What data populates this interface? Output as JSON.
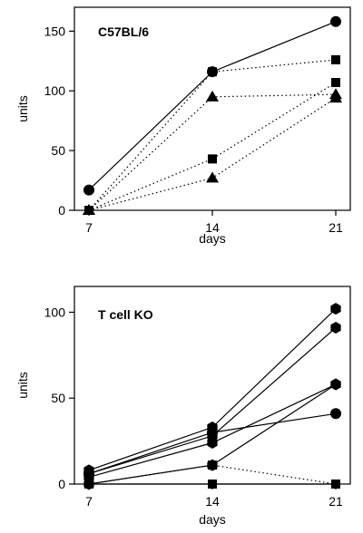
{
  "chart_data": [
    {
      "type": "line",
      "title": "C57BL/6",
      "xlabel": "days",
      "ylabel": "units",
      "x": [
        7,
        14,
        21
      ],
      "xticks": [
        "7",
        "14",
        "21"
      ],
      "yticks": [
        "0",
        "50",
        "100",
        "150"
      ],
      "ylim": [
        0,
        170
      ],
      "grid": false,
      "legend": "none",
      "series": [
        {
          "marker": "circle",
          "dash": "solid",
          "values": [
            17,
            116,
            158
          ]
        },
        {
          "marker": "square",
          "dash": "dotted",
          "values": [
            0,
            116,
            126
          ]
        },
        {
          "marker": "triangle",
          "dash": "dotted",
          "values": [
            0,
            95,
            97
          ]
        },
        {
          "marker": "square",
          "dash": "dotted",
          "values": [
            0,
            43,
            107
          ]
        },
        {
          "marker": "triangle",
          "dash": "dotted",
          "values": [
            0,
            27,
            94
          ]
        }
      ]
    },
    {
      "type": "line",
      "title": "T cell KO",
      "xlabel": "days",
      "ylabel": "units",
      "x": [
        7,
        14,
        21
      ],
      "xticks": [
        "7",
        "14",
        "21"
      ],
      "yticks": [
        "0",
        "50",
        "100"
      ],
      "ylim": [
        0,
        115
      ],
      "grid": false,
      "legend": "none",
      "series": [
        {
          "marker": "hexagon",
          "dash": "solid",
          "values": [
            8,
            33,
            102
          ]
        },
        {
          "marker": "hexagon",
          "dash": "solid",
          "values": [
            6,
            28,
            91
          ]
        },
        {
          "marker": "hexagon",
          "dash": "solid",
          "values": [
            4,
            24,
            58
          ]
        },
        {
          "marker": "circle",
          "dash": "solid",
          "values": [
            6,
            30,
            41
          ]
        },
        {
          "marker": "hexagon",
          "dash": "solid",
          "values": [
            0,
            11,
            58
          ]
        },
        {
          "marker": "square",
          "dash": "dotted",
          "values": [
            0,
            11,
            0
          ]
        },
        {
          "marker": "square",
          "dash": "solid",
          "values": [
            0,
            0,
            0
          ]
        }
      ]
    }
  ]
}
